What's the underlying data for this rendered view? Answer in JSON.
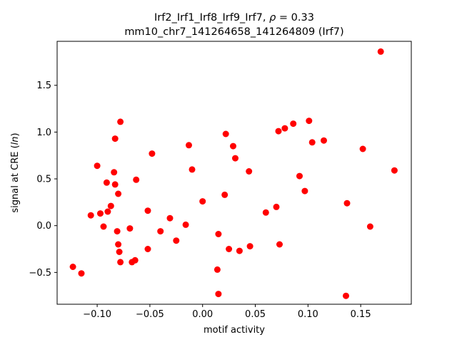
{
  "chart_data": {
    "type": "scatter",
    "title_line1": "Irf2_Irf1_Irf8_Irf9_Irf7, ",
    "rho_symbol": "ρ",
    "rho_value": " = 0.33",
    "title_line2": "mm10_chr7_141264658_141264809 (Irf7)",
    "xlabel": "motif activity",
    "ylabel_prefix": "signal at CRE (",
    "ylabel_italic": "ln",
    "ylabel_suffix": ")",
    "xlim": [
      -0.138,
      0.198
    ],
    "ylim": [
      -0.84,
      1.97
    ],
    "xticks": [
      -0.1,
      -0.05,
      0.0,
      0.05,
      0.1,
      0.15
    ],
    "xtick_labels": [
      "−0.10",
      "−0.05",
      "0.00",
      "0.05",
      "0.10",
      "0.15"
    ],
    "yticks": [
      -0.5,
      0.0,
      0.5,
      1.0,
      1.5
    ],
    "ytick_labels": [
      "−0.5",
      "0.0",
      "0.5",
      "1.0",
      "1.5"
    ],
    "marker_color": "#ff0000",
    "grid": false,
    "points": [
      {
        "x": 0.169,
        "y": 1.86
      },
      {
        "x": 0.182,
        "y": 0.59
      },
      {
        "x": 0.159,
        "y": -0.01
      },
      {
        "x": 0.152,
        "y": 0.82
      },
      {
        "x": 0.137,
        "y": 0.24
      },
      {
        "x": 0.136,
        "y": -0.75
      },
      {
        "x": 0.115,
        "y": 0.91
      },
      {
        "x": 0.104,
        "y": 0.89
      },
      {
        "x": 0.101,
        "y": 1.12
      },
      {
        "x": 0.097,
        "y": 0.37
      },
      {
        "x": 0.092,
        "y": 0.53
      },
      {
        "x": 0.086,
        "y": 1.09
      },
      {
        "x": 0.078,
        "y": 1.04
      },
      {
        "x": 0.072,
        "y": 1.01
      },
      {
        "x": 0.073,
        "y": -0.2
      },
      {
        "x": 0.07,
        "y": 0.2
      },
      {
        "x": 0.06,
        "y": 0.14
      },
      {
        "x": 0.045,
        "y": -0.22
      },
      {
        "x": 0.044,
        "y": 0.58
      },
      {
        "x": 0.035,
        "y": -0.27
      },
      {
        "x": 0.031,
        "y": 0.72
      },
      {
        "x": 0.029,
        "y": 0.85
      },
      {
        "x": 0.025,
        "y": -0.25
      },
      {
        "x": 0.022,
        "y": 0.98
      },
      {
        "x": 0.021,
        "y": 0.33
      },
      {
        "x": 0.015,
        "y": -0.09
      },
      {
        "x": 0.014,
        "y": -0.47
      },
      {
        "x": 0.015,
        "y": -0.73
      },
      {
        "x": 0.0,
        "y": 0.26
      },
      {
        "x": -0.01,
        "y": 0.6
      },
      {
        "x": -0.013,
        "y": 0.86
      },
      {
        "x": -0.016,
        "y": 0.01
      },
      {
        "x": -0.025,
        "y": -0.16
      },
      {
        "x": -0.031,
        "y": 0.08
      },
      {
        "x": -0.04,
        "y": -0.06
      },
      {
        "x": -0.048,
        "y": 0.77
      },
      {
        "x": -0.052,
        "y": -0.25
      },
      {
        "x": -0.052,
        "y": 0.16
      },
      {
        "x": -0.063,
        "y": 0.49
      },
      {
        "x": -0.064,
        "y": -0.37
      },
      {
        "x": -0.067,
        "y": -0.39
      },
      {
        "x": -0.069,
        "y": -0.03
      },
      {
        "x": -0.078,
        "y": 1.11
      },
      {
        "x": -0.078,
        "y": -0.39
      },
      {
        "x": -0.079,
        "y": -0.28
      },
      {
        "x": -0.08,
        "y": -0.2
      },
      {
        "x": -0.081,
        "y": -0.06
      },
      {
        "x": -0.08,
        "y": 0.34
      },
      {
        "x": -0.083,
        "y": 0.93
      },
      {
        "x": -0.083,
        "y": 0.44
      },
      {
        "x": -0.084,
        "y": 0.57
      },
      {
        "x": -0.087,
        "y": 0.21
      },
      {
        "x": -0.09,
        "y": 0.15
      },
      {
        "x": -0.091,
        "y": 0.46
      },
      {
        "x": -0.094,
        "y": -0.01
      },
      {
        "x": -0.097,
        "y": 0.13
      },
      {
        "x": -0.1,
        "y": 0.64
      },
      {
        "x": -0.106,
        "y": 0.11
      },
      {
        "x": -0.115,
        "y": -0.51
      },
      {
        "x": -0.123,
        "y": -0.44
      }
    ]
  }
}
